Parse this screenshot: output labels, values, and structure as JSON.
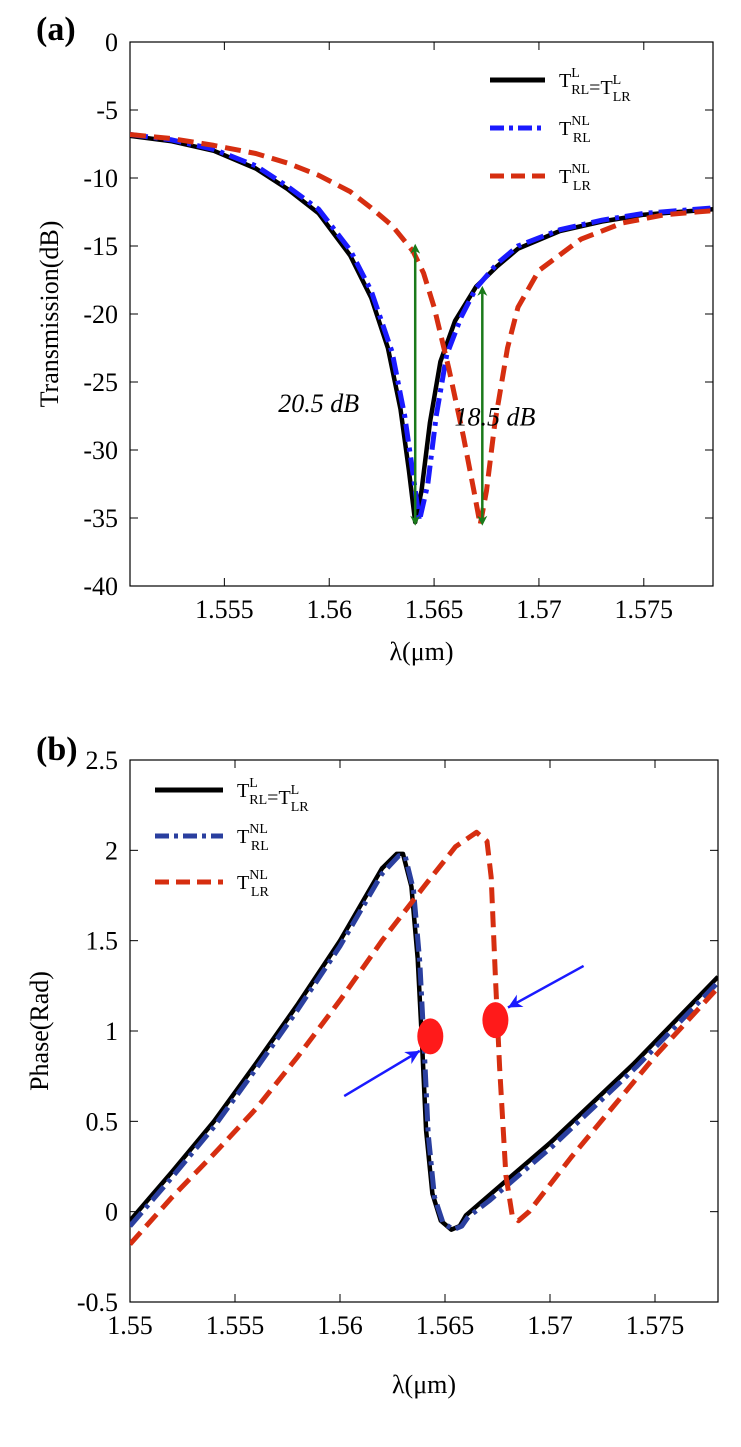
{
  "chart_data": [
    {
      "type": "line",
      "panel_label": "(a)",
      "xlabel": "λ(μm)",
      "ylabel": "Transmission(dB)",
      "xlim": [
        1.5505,
        1.5783
      ],
      "ylim": [
        -40,
        0
      ],
      "xticks": [
        {
          "value": 1.555,
          "label": "1.555"
        },
        {
          "value": 1.56,
          "label": "1.56"
        },
        {
          "value": 1.565,
          "label": "1.565"
        },
        {
          "value": 1.57,
          "label": "1.57"
        },
        {
          "value": 1.575,
          "label": "1.575"
        }
      ],
      "yticks": [
        {
          "value": 0,
          "label": "0"
        },
        {
          "value": -5,
          "label": "-5"
        },
        {
          "value": -10,
          "label": "-10"
        },
        {
          "value": -15,
          "label": "-15"
        },
        {
          "value": -20,
          "label": "-20"
        },
        {
          "value": -25,
          "label": "-25"
        },
        {
          "value": -30,
          "label": "-30"
        },
        {
          "value": -35,
          "label": "-35"
        },
        {
          "value": -40,
          "label": "-40"
        }
      ],
      "grid": false,
      "legend_position": "top-right",
      "series": [
        {
          "key": "lin",
          "legend": {
            "t1": "T",
            "sup1": "L",
            "sub1": "RL",
            "mid": "=",
            "t2": "T",
            "sup2": "L",
            "sub2": "LR"
          },
          "color": "#000000",
          "style": "solid",
          "x": [
            1.5505,
            1.5525,
            1.5545,
            1.5565,
            1.558,
            1.5595,
            1.561,
            1.562,
            1.5628,
            1.5634,
            1.5638,
            1.5641,
            1.5644,
            1.5648,
            1.5653,
            1.566,
            1.567,
            1.568,
            1.569,
            1.571,
            1.573,
            1.575,
            1.5783
          ],
          "y": [
            -6.9,
            -7.3,
            -8.0,
            -9.3,
            -10.8,
            -12.6,
            -15.7,
            -18.8,
            -22.5,
            -27.0,
            -31.5,
            -35.3,
            -33.0,
            -28.0,
            -23.5,
            -20.5,
            -18.0,
            -16.5,
            -15.2,
            -13.9,
            -13.2,
            -12.7,
            -12.3
          ]
        },
        {
          "key": "nl_rl",
          "legend": {
            "t1": "T",
            "sup1": "NL",
            "sub1": "RL"
          },
          "color": "#1a1aff",
          "style": "dashdot",
          "x": [
            1.5505,
            1.5525,
            1.5545,
            1.5565,
            1.558,
            1.5595,
            1.561,
            1.562,
            1.563,
            1.5636,
            1.564,
            1.5643,
            1.5647,
            1.5651,
            1.5656,
            1.5663,
            1.567,
            1.568,
            1.569,
            1.571,
            1.573,
            1.575,
            1.5783
          ],
          "y": [
            -6.8,
            -7.2,
            -7.9,
            -9.1,
            -10.6,
            -12.3,
            -15.3,
            -18.3,
            -22.8,
            -27.5,
            -31.8,
            -35.2,
            -32.5,
            -27.5,
            -23.0,
            -20.2,
            -18.1,
            -16.3,
            -15.0,
            -13.8,
            -13.1,
            -12.6,
            -12.2
          ]
        },
        {
          "key": "nl_lr",
          "legend": {
            "t1": "T",
            "sup1": "NL",
            "sub1": "LR"
          },
          "color": "#d62e10",
          "style": "dashed",
          "x": [
            1.5505,
            1.5525,
            1.5545,
            1.5565,
            1.558,
            1.5595,
            1.561,
            1.562,
            1.563,
            1.564,
            1.5645,
            1.565,
            1.5657,
            1.5664,
            1.5669,
            1.5672,
            1.5675,
            1.5679,
            1.5685,
            1.569,
            1.57,
            1.572,
            1.574,
            1.576,
            1.5783
          ],
          "y": [
            -6.8,
            -7.1,
            -7.6,
            -8.2,
            -8.9,
            -9.8,
            -11.0,
            -12.2,
            -13.5,
            -15.4,
            -17.0,
            -19.5,
            -24.0,
            -29.0,
            -33.0,
            -35.5,
            -33.0,
            -28.0,
            -22.5,
            -19.5,
            -16.8,
            -14.5,
            -13.3,
            -12.7,
            -12.4
          ]
        }
      ],
      "annotations": [
        {
          "text": "20.5 dB",
          "x": 1.5595,
          "y": -27.2
        },
        {
          "text": "18.5 dB",
          "x": 1.5679,
          "y": -28.2
        }
      ],
      "arrows": [
        {
          "x": 1.5641,
          "y_from": -15.2,
          "y_to": -35.2,
          "color": "#1a7a1a"
        },
        {
          "x": 1.5673,
          "y_from": -18.3,
          "y_to": -35.2,
          "color": "#1a7a1a"
        }
      ]
    },
    {
      "type": "line",
      "panel_label": "(b)",
      "xlabel": "λ(μm)",
      "ylabel": "Phase(Rad)",
      "xlim": [
        1.55,
        1.578
      ],
      "ylim": [
        -0.5,
        2.5
      ],
      "xticks": [
        {
          "value": 1.55,
          "label": "1.55"
        },
        {
          "value": 1.555,
          "label": "1.555"
        },
        {
          "value": 1.56,
          "label": "1.56"
        },
        {
          "value": 1.565,
          "label": "1.565"
        },
        {
          "value": 1.57,
          "label": "1.57"
        },
        {
          "value": 1.575,
          "label": "1.575"
        }
      ],
      "yticks": [
        {
          "value": -0.5,
          "label": "-0.5"
        },
        {
          "value": 0,
          "label": "0"
        },
        {
          "value": 0.5,
          "label": "0.5"
        },
        {
          "value": 1,
          "label": "1"
        },
        {
          "value": 1.5,
          "label": "1.5"
        },
        {
          "value": 2,
          "label": "2"
        },
        {
          "value": 2.5,
          "label": "2.5"
        }
      ],
      "grid": false,
      "legend_position": "top-left",
      "series": [
        {
          "key": "lin",
          "legend": {
            "t1": "T",
            "sup1": "L",
            "sub1": "RL",
            "mid": "=",
            "t2": "T",
            "sup2": "L",
            "sub2": "LR"
          },
          "color": "#000000",
          "style": "solid",
          "x": [
            1.55,
            1.552,
            1.554,
            1.556,
            1.558,
            1.56,
            1.561,
            1.562,
            1.5627,
            1.563,
            1.5634,
            1.5637,
            1.5639,
            1.5641,
            1.5644,
            1.5648,
            1.5653,
            1.5657,
            1.566,
            1.567,
            1.568,
            1.57,
            1.572,
            1.574,
            1.576,
            1.578
          ],
          "y": [
            -0.05,
            0.22,
            0.5,
            0.82,
            1.15,
            1.5,
            1.7,
            1.9,
            1.98,
            1.98,
            1.8,
            1.4,
            0.95,
            0.45,
            0.1,
            -0.05,
            -0.1,
            -0.08,
            -0.02,
            0.08,
            0.18,
            0.38,
            0.6,
            0.82,
            1.06,
            1.3
          ]
        },
        {
          "key": "nl_rl",
          "legend": {
            "t1": "T",
            "sup1": "NL",
            "sub1": "RL"
          },
          "color": "#2a3f9f",
          "style": "dashdot",
          "x": [
            1.55,
            1.552,
            1.554,
            1.556,
            1.558,
            1.56,
            1.561,
            1.562,
            1.5628,
            1.5631,
            1.5635,
            1.5638,
            1.564,
            1.5642,
            1.5645,
            1.5649,
            1.5654,
            1.5658,
            1.5661,
            1.5671,
            1.5681,
            1.5701,
            1.5721,
            1.5741,
            1.5761,
            1.578
          ],
          "y": [
            -0.08,
            0.19,
            0.47,
            0.79,
            1.12,
            1.47,
            1.67,
            1.87,
            1.97,
            1.97,
            1.78,
            1.38,
            0.93,
            0.43,
            0.08,
            -0.06,
            -0.1,
            -0.08,
            -0.03,
            0.06,
            0.16,
            0.36,
            0.58,
            0.8,
            1.04,
            1.27
          ]
        },
        {
          "key": "nl_lr",
          "legend": {
            "t1": "T",
            "sup1": "NL",
            "sub1": "LR"
          },
          "color": "#d62e10",
          "style": "dashed",
          "x": [
            1.55,
            1.552,
            1.554,
            1.556,
            1.558,
            1.56,
            1.562,
            1.564,
            1.5655,
            1.5665,
            1.567,
            1.5672,
            1.5674,
            1.5676,
            1.5679,
            1.5682,
            1.5685,
            1.569,
            1.571,
            1.573,
            1.575,
            1.578
          ],
          "y": [
            -0.18,
            0.08,
            0.32,
            0.57,
            0.86,
            1.17,
            1.5,
            1.8,
            2.02,
            2.1,
            2.05,
            1.85,
            1.3,
            0.8,
            0.2,
            -0.02,
            -0.05,
            0.0,
            0.3,
            0.58,
            0.86,
            1.24
          ]
        }
      ],
      "markers": [
        {
          "x": 1.5643,
          "y": 0.97,
          "color": "#ff1a1a"
        },
        {
          "x": 1.5674,
          "y": 1.06,
          "color": "#ff1a1a"
        }
      ],
      "arrows": [
        {
          "x1": 1.5602,
          "y1": 0.64,
          "x2": 1.5638,
          "y2": 0.89,
          "color": "#1a1aff"
        },
        {
          "x1": 1.5716,
          "y1": 1.36,
          "x2": 1.568,
          "y2": 1.13,
          "color": "#1a1aff"
        }
      ]
    }
  ]
}
